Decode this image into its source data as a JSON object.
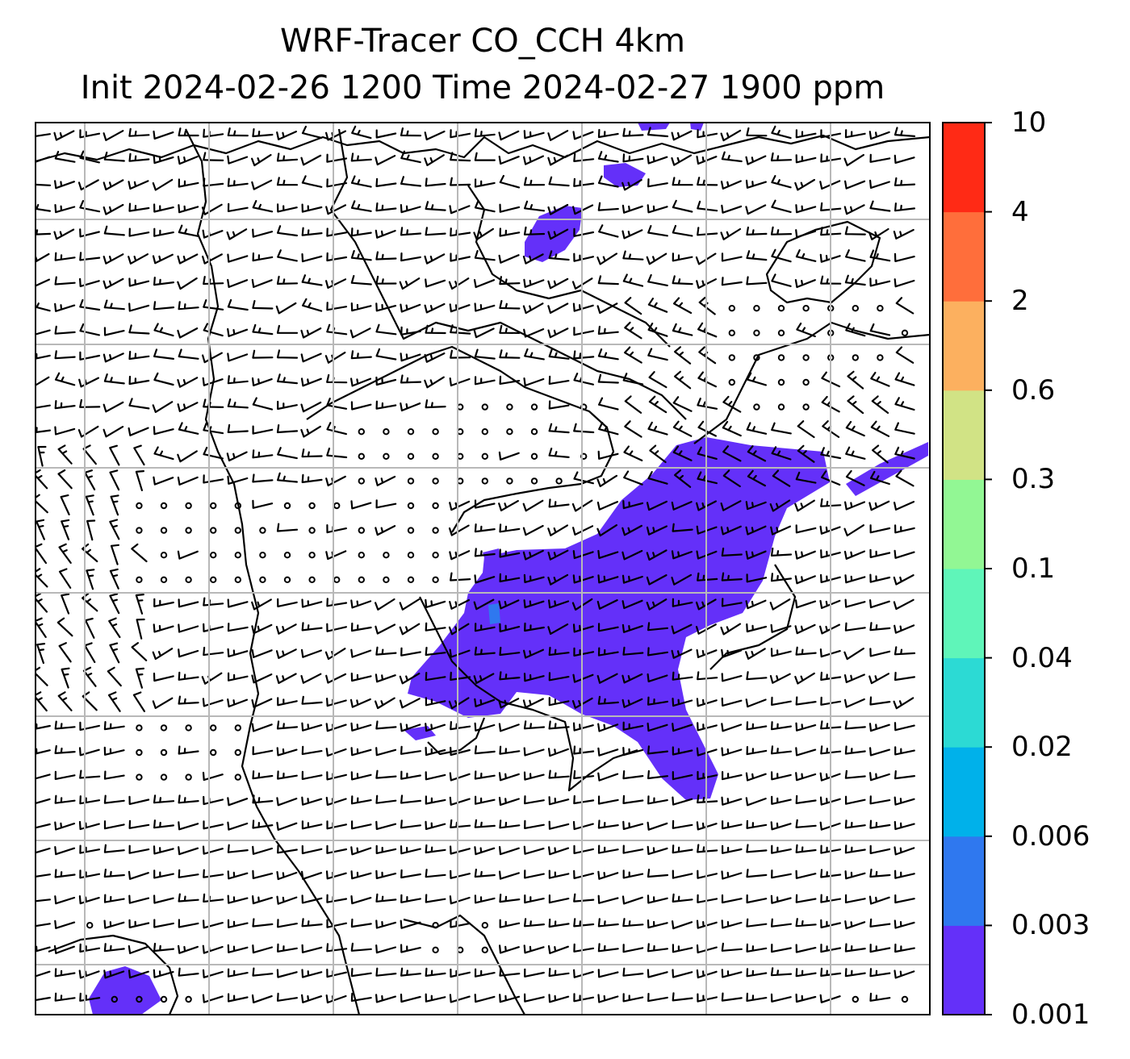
{
  "title": {
    "line1": "WRF-Tracer CO_CCH 4km",
    "line2": "Init 2024-02-26 1200 Time 2024-02-27 1900 ppm"
  },
  "colorbar": {
    "levels": [
      "0.001",
      "0.003",
      "0.006",
      "0.02",
      "0.04",
      "0.1",
      "0.3",
      "0.6",
      "2",
      "4",
      "10"
    ],
    "colors": [
      "#6430f9",
      "#2f78ef",
      "#00b1ea",
      "#2cdad4",
      "#5ff5b9",
      "#92f794",
      "#d1e385",
      "#fcb05f",
      "#ff6e3b",
      "#ff2a15"
    ]
  },
  "map": {
    "plume_color": "#6430f9",
    "grid_color": "#b8b8b8",
    "barb_color": "#000000"
  }
}
